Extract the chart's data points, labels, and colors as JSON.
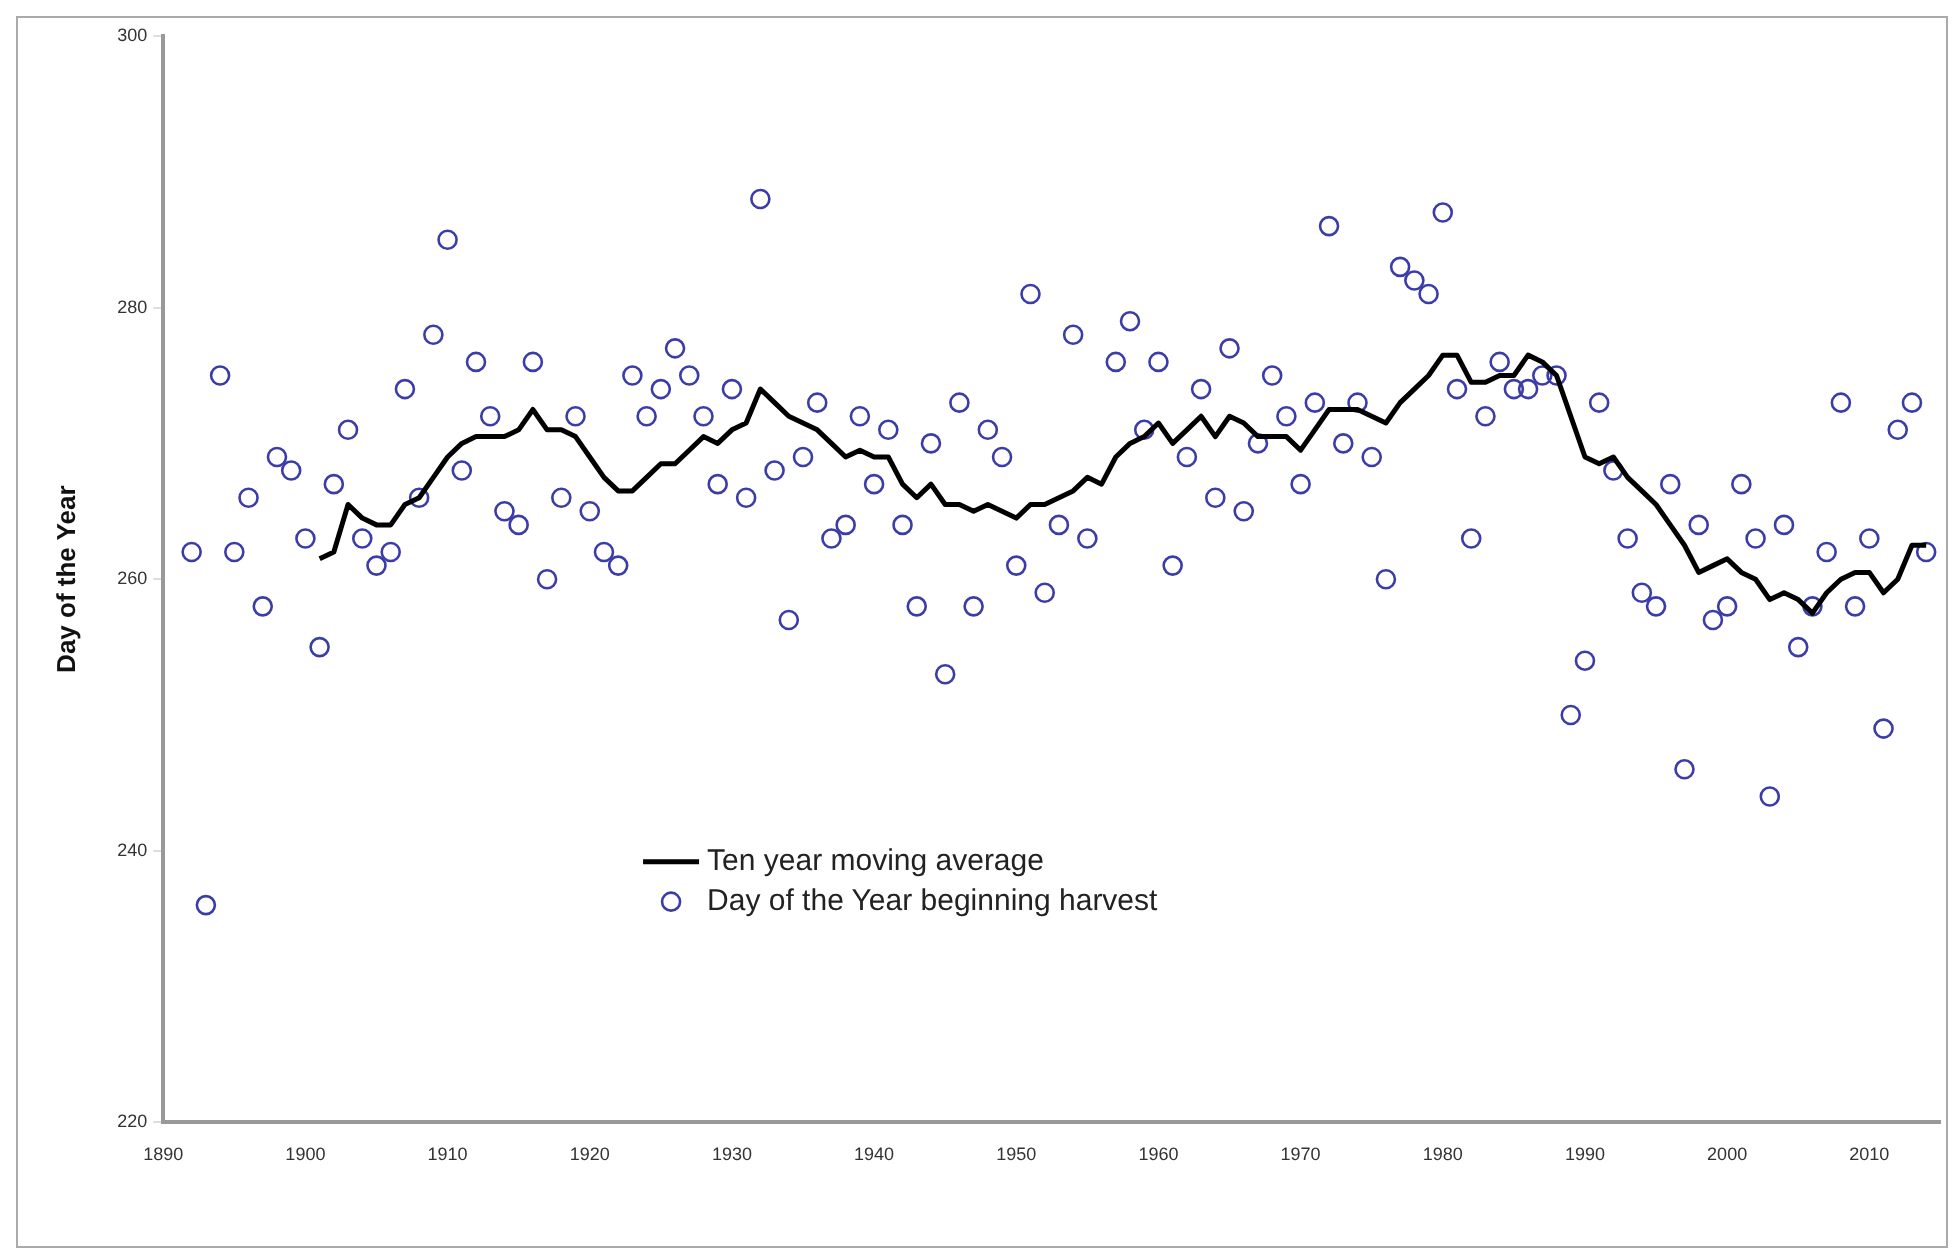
{
  "chart_data": {
    "type": "scatter",
    "ylabel": "Day of the Year",
    "xlim": [
      1890,
      2015
    ],
    "xticks": [
      1890,
      1900,
      1910,
      1920,
      1930,
      1940,
      1950,
      1960,
      1970,
      1980,
      1990,
      2000,
      2010
    ],
    "ylim": [
      220,
      300
    ],
    "yticks": [
      220,
      240,
      260,
      280,
      300
    ],
    "grid": false,
    "legend": "bottom",
    "series": [
      {
        "name": "Ten year moving average",
        "type": "line",
        "color": "#000000",
        "marker": "none",
        "x": [
          1901,
          1902,
          1903,
          1904,
          1905,
          1906,
          1907,
          1908,
          1909,
          1910,
          1911,
          1912,
          1913,
          1914,
          1915,
          1916,
          1917,
          1918,
          1919,
          1920,
          1921,
          1922,
          1923,
          1924,
          1925,
          1926,
          1927,
          1928,
          1929,
          1930,
          1931,
          1932,
          1933,
          1934,
          1935,
          1936,
          1937,
          1938,
          1939,
          1940,
          1941,
          1942,
          1943,
          1944,
          1945,
          1946,
          1947,
          1948,
          1949,
          1950,
          1951,
          1952,
          1953,
          1954,
          1955,
          1956,
          1957,
          1958,
          1959,
          1960,
          1961,
          1962,
          1963,
          1964,
          1965,
          1966,
          1967,
          1968,
          1969,
          1970,
          1971,
          1972,
          1973,
          1974,
          1975,
          1976,
          1977,
          1978,
          1979,
          1980,
          1981,
          1982,
          1983,
          1984,
          1985,
          1986,
          1987,
          1988,
          1989,
          1990,
          1991,
          1992,
          1993,
          1994,
          1995,
          1996,
          1997,
          1998,
          1999,
          2000,
          2001,
          2002,
          2003,
          2004,
          2005,
          2006,
          2007,
          2008,
          2009,
          2010,
          2011,
          2012,
          2013,
          2014
        ],
        "values": [
          261.5,
          262,
          265.5,
          264.5,
          264,
          264,
          265.5,
          266,
          267.5,
          269,
          270,
          270.5,
          270.5,
          270.5,
          271,
          272.5,
          271,
          271,
          270.5,
          269,
          267.5,
          266.5,
          266.5,
          267.5,
          268.5,
          268.5,
          269.5,
          270.5,
          270,
          271,
          271.5,
          274,
          273,
          272,
          271.5,
          271,
          270,
          269,
          269.5,
          269,
          269,
          267,
          266,
          267,
          265.5,
          265.5,
          265,
          265.5,
          265,
          264.5,
          265.5,
          265.5,
          266,
          266.5,
          267.5,
          267,
          269,
          270,
          270.5,
          271.5,
          270,
          271,
          272,
          270.5,
          272,
          271.5,
          270.5,
          270.5,
          270.5,
          269.5,
          271,
          272.5,
          272.5,
          272.5,
          272,
          271.5,
          273,
          274,
          275,
          276.5,
          276.5,
          274.5,
          274.5,
          275,
          275,
          276.5,
          276,
          275,
          272,
          269,
          268.5,
          269,
          267.5,
          266.5,
          265.5,
          264,
          262.5,
          260.5,
          261,
          261.5,
          260.5,
          260,
          258.5,
          259,
          258.5,
          257.5,
          259,
          260,
          260.5,
          260.5,
          259,
          260,
          262.5,
          262.5
        ]
      },
      {
        "name": "Day of the Year beginning harvest",
        "color": "#3c3ca8",
        "marker": "circle",
        "x": [
          1892,
          1893,
          1894,
          1895,
          1896,
          1897,
          1898,
          1899,
          1900,
          1901,
          1902,
          1903,
          1904,
          1905,
          1906,
          1907,
          1908,
          1909,
          1910,
          1911,
          1912,
          1913,
          1914,
          1915,
          1916,
          1917,
          1918,
          1919,
          1920,
          1921,
          1922,
          1923,
          1924,
          1925,
          1926,
          1927,
          1928,
          1929,
          1930,
          1931,
          1932,
          1933,
          1934,
          1935,
          1936,
          1937,
          1938,
          1939,
          1940,
          1941,
          1942,
          1943,
          1944,
          1945,
          1946,
          1947,
          1948,
          1949,
          1950,
          1951,
          1952,
          1953,
          1954,
          1955,
          1957,
          1958,
          1959,
          1960,
          1961,
          1962,
          1963,
          1964,
          1965,
          1966,
          1967,
          1968,
          1969,
          1970,
          1971,
          1972,
          1973,
          1974,
          1975,
          1976,
          1977,
          1978,
          1979,
          1980,
          1981,
          1982,
          1983,
          1984,
          1985,
          1986,
          1987,
          1988,
          1989,
          1990,
          1991,
          1992,
          1993,
          1994,
          1995,
          1996,
          1997,
          1998,
          1999,
          2000,
          2001,
          2002,
          2003,
          2004,
          2005,
          2006,
          2007,
          2008,
          2009,
          2010,
          2011,
          2012,
          2013,
          2014
        ],
        "values": [
          262,
          236,
          275,
          262,
          266,
          258,
          269,
          268,
          263,
          255,
          267,
          271,
          263,
          261,
          262,
          274,
          266,
          278,
          285,
          268,
          276,
          272,
          265,
          264,
          276,
          260,
          266,
          272,
          265,
          262,
          261,
          275,
          272,
          274,
          277,
          275,
          272,
          267,
          274,
          266,
          288,
          268,
          257,
          269,
          273,
          263,
          264,
          272,
          267,
          271,
          264,
          258,
          270,
          253,
          273,
          258,
          271,
          269,
          261,
          281,
          259,
          264,
          278,
          263,
          276,
          279,
          271,
          276,
          261,
          269,
          274,
          266,
          277,
          265,
          270,
          275,
          272,
          267,
          273,
          286,
          270,
          273,
          269,
          260,
          283,
          282,
          281,
          287,
          274,
          263,
          272,
          276,
          274,
          274,
          275,
          275,
          250,
          254,
          273,
          268,
          263,
          259,
          258,
          267,
          246,
          264,
          257,
          258,
          267,
          263,
          244,
          264,
          255,
          258,
          262,
          273,
          258,
          263,
          249,
          271,
          273,
          262
        ]
      }
    ]
  }
}
